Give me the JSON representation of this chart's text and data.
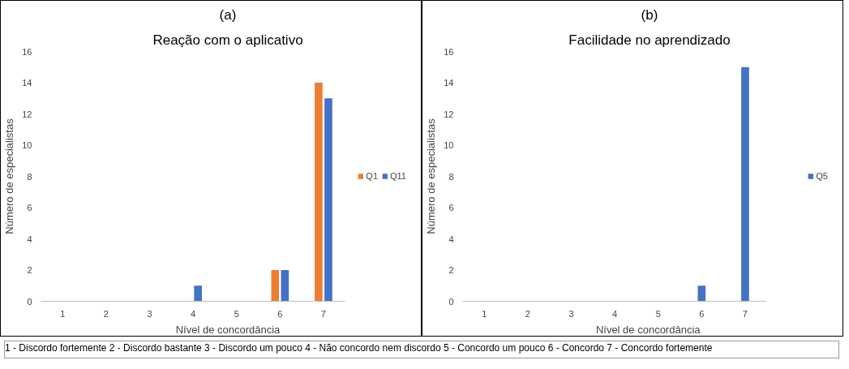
{
  "chart_data": [
    {
      "type": "bar",
      "title": "Reação com o aplicativo",
      "xlabel": "Nível de concordância",
      "ylabel": "Número de especialistas",
      "annotations": [
        "(a)",
        "1 - Discordo fortemente   2 - Discordo bastante   3 - Discordo um pouco   4 - Não concordo nem discordo   5 - Concordo um pouco   6 - Concordo   7 - Concordo fortemente"
      ],
      "categories": [
        "1",
        "2",
        "3",
        "4",
        "5",
        "6",
        "7"
      ],
      "series": [
        {
          "name": "Q1",
          "color": "#ed7d31",
          "values": [
            0,
            0,
            0,
            0,
            0,
            2,
            14
          ]
        },
        {
          "name": "Q11",
          "color": "#4472c4",
          "values": [
            0,
            0,
            0,
            1,
            0,
            2,
            13
          ]
        }
      ],
      "ylim": [
        0,
        16
      ],
      "yticks": [
        0,
        2,
        4,
        6,
        8,
        10,
        12,
        14,
        16
      ],
      "legend": "right"
    },
    {
      "type": "bar",
      "title": "Facilidade no aprendizado",
      "xlabel": "Nível  de concordância",
      "ylabel": "Número de especialistas",
      "annotations": [
        "(b)"
      ],
      "categories": [
        "1",
        "2",
        "3",
        "4",
        "5",
        "6",
        "7"
      ],
      "series": [
        {
          "name": "Q5",
          "color": "#4472c4",
          "values": [
            0,
            0,
            0,
            0,
            0,
            1,
            15
          ]
        }
      ],
      "ylim": [
        0,
        16
      ],
      "yticks": [
        0,
        2,
        4,
        6,
        8,
        10,
        12,
        14,
        16
      ],
      "legend": "right"
    }
  ]
}
